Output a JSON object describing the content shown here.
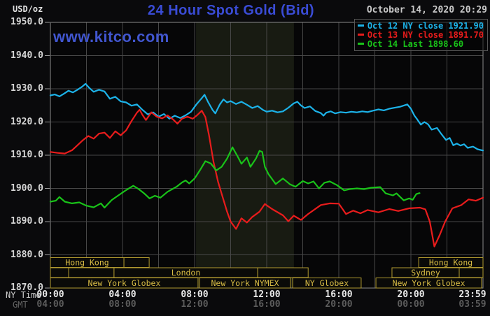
{
  "header": {
    "title": "24 Hour Spot Gold (Bid)",
    "date": "October 14, 2020 20:29",
    "watermark": "www.kitco.com"
  },
  "legend": {
    "items": [
      {
        "label": "Oct 12 NY close 1921.90",
        "color": "#1cb2e8"
      },
      {
        "label": "Oct 13 NY close 1891.70",
        "color": "#e81c1c"
      },
      {
        "label": "Oct 14 Last 1898.60",
        "color": "#19c319"
      }
    ]
  },
  "colors": {
    "outer_bg": "#0a0a0c",
    "plot_bg": "#060607",
    "band": "#181b12",
    "grid": "#474747",
    "border": "#8a8a8a",
    "session_border": "#b09a30",
    "session_text": "#d8bc45",
    "session_fill": "#0a0a08"
  },
  "chart_data": {
    "type": "line",
    "title": "24 Hour Spot Gold (Bid)",
    "y_axis": {
      "label": "USD/oz",
      "min": 1870,
      "max": 1950,
      "tick_step": 10,
      "tick_labels": [
        "1950.0",
        "1940.0",
        "1930.0",
        "1920.0",
        "1910.0",
        "1900.0",
        "1890.0",
        "1880.0",
        "1870.0"
      ]
    },
    "x_axis": {
      "label_ny": "NY Time",
      "label_gmt": "GMT",
      "range_hours": [
        0,
        24
      ],
      "grid_step_hours": 2,
      "ticks": [
        {
          "h": 0,
          "ny": "00:00",
          "gmt": "04:00"
        },
        {
          "h": 4,
          "ny": "04:00",
          "gmt": "08:00"
        },
        {
          "h": 8,
          "ny": "08:00",
          "gmt": "12:00"
        },
        {
          "h": 12,
          "ny": "12:00",
          "gmt": "16:00"
        },
        {
          "h": 16,
          "ny": "16:00",
          "gmt": "20:00"
        },
        {
          "h": 20,
          "ny": "20:00",
          "gmt": "00:00"
        },
        {
          "h": 23.983,
          "ny": "23:59",
          "gmt": "03:59",
          "align": "right"
        }
      ]
    },
    "nymex_highlight_hours": [
      8.08,
      13.51
    ],
    "sessions": [
      {
        "boxes": [
          {
            "label": "Hong Kong",
            "start": 0,
            "end": 4.08
          },
          {
            "label": "",
            "start": 4.08,
            "end": 5.48
          },
          {
            "label": "Hong Kong",
            "start": 20.43,
            "end": 24
          }
        ]
      },
      {
        "boxes": [
          {
            "label": "",
            "start": 0,
            "end": 1.01
          },
          {
            "label": "",
            "start": 1.01,
            "end": 3.53
          },
          {
            "label": "London",
            "start": 3.53,
            "end": 11.5
          },
          {
            "label": "",
            "start": 11.5,
            "end": 14.3
          },
          {
            "label": "Sydney",
            "start": 18.95,
            "end": 22.68
          },
          {
            "label": "",
            "start": 22.68,
            "end": 24
          }
        ]
      },
      {
        "boxes": [
          {
            "label": "New York Globex",
            "start": 0,
            "end": 8.19
          },
          {
            "label": "New York NYMEX",
            "start": 8.27,
            "end": 13.32
          },
          {
            "label": "NY Globex",
            "start": 13.44,
            "end": 17.24
          },
          {
            "label": "New York Globex",
            "start": 18.06,
            "end": 23.92
          }
        ]
      }
    ],
    "series": [
      {
        "name": "Oct 12",
        "close_label": "NY close 1921.90",
        "color": "#1cb2e8",
        "points": [
          [
            0,
            1928
          ],
          [
            0.25,
            1928.3
          ],
          [
            0.5,
            1927.7
          ],
          [
            0.75,
            1928.5
          ],
          [
            1,
            1929.4
          ],
          [
            1.25,
            1928.9
          ],
          [
            1.5,
            1929.7
          ],
          [
            1.75,
            1930.6
          ],
          [
            1.95,
            1931.5
          ],
          [
            2.15,
            1930.3
          ],
          [
            2.4,
            1929.1
          ],
          [
            2.7,
            1929.7
          ],
          [
            3,
            1929.2
          ],
          [
            3.3,
            1927
          ],
          [
            3.6,
            1927.6
          ],
          [
            3.9,
            1926.2
          ],
          [
            4.2,
            1925.9
          ],
          [
            4.5,
            1924.9
          ],
          [
            4.8,
            1925.3
          ],
          [
            5.1,
            1923.7
          ],
          [
            5.4,
            1922.3
          ],
          [
            5.7,
            1922.9
          ],
          [
            6,
            1921.6
          ],
          [
            6.3,
            1922.4
          ],
          [
            6.6,
            1921
          ],
          [
            6.9,
            1921.9
          ],
          [
            7.2,
            1921.2
          ],
          [
            7.5,
            1922
          ],
          [
            7.8,
            1923.1
          ],
          [
            8.1,
            1925.3
          ],
          [
            8.4,
            1927.2
          ],
          [
            8.55,
            1928.2
          ],
          [
            8.75,
            1926
          ],
          [
            9,
            1923.6
          ],
          [
            9.15,
            1922.6
          ],
          [
            9.4,
            1925.3
          ],
          [
            9.6,
            1926.8
          ],
          [
            9.8,
            1925.9
          ],
          [
            10,
            1926.3
          ],
          [
            10.3,
            1925.4
          ],
          [
            10.6,
            1926.1
          ],
          [
            10.9,
            1925.2
          ],
          [
            11.2,
            1924.2
          ],
          [
            11.5,
            1924.8
          ],
          [
            11.8,
            1923.6
          ],
          [
            12,
            1923.1
          ],
          [
            12.3,
            1923.4
          ],
          [
            12.6,
            1922.9
          ],
          [
            12.9,
            1923.2
          ],
          [
            13.2,
            1924.3
          ],
          [
            13.5,
            1925.6
          ],
          [
            13.7,
            1926.1
          ],
          [
            13.9,
            1925
          ],
          [
            14.1,
            1924.2
          ],
          [
            14.4,
            1924.7
          ],
          [
            14.7,
            1923.3
          ],
          [
            15,
            1922.7
          ],
          [
            15.15,
            1921.9
          ],
          [
            15.3,
            1922.8
          ],
          [
            15.55,
            1923.2
          ],
          [
            15.8,
            1922.6
          ],
          [
            16.1,
            1923
          ],
          [
            16.4,
            1922.8
          ],
          [
            16.7,
            1923.1
          ],
          [
            17,
            1922.9
          ],
          [
            17.3,
            1923.2
          ],
          [
            17.6,
            1923
          ],
          [
            17.9,
            1923.4
          ],
          [
            18.2,
            1923.8
          ],
          [
            18.5,
            1923.5
          ],
          [
            18.8,
            1924
          ],
          [
            19.1,
            1924.3
          ],
          [
            19.4,
            1924.6
          ],
          [
            19.8,
            1925.3
          ],
          [
            20,
            1924
          ],
          [
            20.2,
            1921.9
          ],
          [
            20.35,
            1920.8
          ],
          [
            20.55,
            1919.2
          ],
          [
            20.75,
            1920
          ],
          [
            20.95,
            1919.3
          ],
          [
            21.15,
            1917.7
          ],
          [
            21.45,
            1918.2
          ],
          [
            21.7,
            1916.3
          ],
          [
            21.95,
            1914.6
          ],
          [
            22.15,
            1915.2
          ],
          [
            22.35,
            1913
          ],
          [
            22.55,
            1913.5
          ],
          [
            22.75,
            1912.9
          ],
          [
            22.95,
            1913.3
          ],
          [
            23.15,
            1912.2
          ],
          [
            23.45,
            1912.6
          ],
          [
            23.7,
            1911.8
          ],
          [
            24,
            1911.4
          ]
        ]
      },
      {
        "name": "Oct 13",
        "close_label": "NY close 1891.70",
        "color": "#e81c1c",
        "points": [
          [
            0,
            1911
          ],
          [
            0.4,
            1910.7
          ],
          [
            0.8,
            1910.5
          ],
          [
            1.2,
            1911.5
          ],
          [
            1.5,
            1913
          ],
          [
            1.8,
            1914.5
          ],
          [
            2.1,
            1915.8
          ],
          [
            2.4,
            1915
          ],
          [
            2.7,
            1916.5
          ],
          [
            3,
            1916.8
          ],
          [
            3.3,
            1915.2
          ],
          [
            3.6,
            1917.2
          ],
          [
            3.9,
            1916
          ],
          [
            4.2,
            1917.5
          ],
          [
            4.5,
            1920.3
          ],
          [
            4.8,
            1922.8
          ],
          [
            4.95,
            1923.7
          ],
          [
            5.1,
            1922.2
          ],
          [
            5.3,
            1920.6
          ],
          [
            5.6,
            1922.9
          ],
          [
            5.9,
            1921.6
          ],
          [
            6.2,
            1921.1
          ],
          [
            6.5,
            1922
          ],
          [
            6.8,
            1920.8
          ],
          [
            7.05,
            1919.5
          ],
          [
            7.3,
            1921
          ],
          [
            7.6,
            1921.6
          ],
          [
            7.9,
            1921
          ],
          [
            8.15,
            1922.1
          ],
          [
            8.4,
            1923.4
          ],
          [
            8.6,
            1921.5
          ],
          [
            8.8,
            1916
          ],
          [
            9.05,
            1908
          ],
          [
            9.3,
            1902
          ],
          [
            9.5,
            1898.4
          ],
          [
            9.8,
            1893
          ],
          [
            10,
            1890
          ],
          [
            10.3,
            1887.8
          ],
          [
            10.6,
            1891
          ],
          [
            10.9,
            1889.7
          ],
          [
            11.2,
            1891.4
          ],
          [
            11.6,
            1893
          ],
          [
            11.9,
            1895.3
          ],
          [
            12.3,
            1893.8
          ],
          [
            12.9,
            1891.9
          ],
          [
            13.2,
            1890.1
          ],
          [
            13.5,
            1891.8
          ],
          [
            13.9,
            1890.5
          ],
          [
            14.3,
            1892.3
          ],
          [
            15,
            1895
          ],
          [
            15.5,
            1895.5
          ],
          [
            16,
            1895.4
          ],
          [
            16.4,
            1892.3
          ],
          [
            16.8,
            1893.3
          ],
          [
            17.2,
            1892.5
          ],
          [
            17.6,
            1893.5
          ],
          [
            18.2,
            1892.8
          ],
          [
            18.8,
            1893.8
          ],
          [
            19.3,
            1893.2
          ],
          [
            19.9,
            1894
          ],
          [
            20.5,
            1894.2
          ],
          [
            20.8,
            1893.7
          ],
          [
            21.05,
            1890
          ],
          [
            21.3,
            1882.5
          ],
          [
            21.6,
            1886
          ],
          [
            21.9,
            1890
          ],
          [
            22.3,
            1894
          ],
          [
            22.8,
            1895
          ],
          [
            23.2,
            1896.7
          ],
          [
            23.6,
            1896.3
          ],
          [
            24,
            1897.2
          ]
        ]
      },
      {
        "name": "Oct 14",
        "close_label": "Last 1898.60",
        "color": "#19c319",
        "points": [
          [
            0,
            1896
          ],
          [
            0.3,
            1896.3
          ],
          [
            0.5,
            1897.4
          ],
          [
            0.8,
            1896
          ],
          [
            1.2,
            1895.5
          ],
          [
            1.6,
            1895.8
          ],
          [
            2,
            1894.8
          ],
          [
            2.4,
            1894.3
          ],
          [
            2.8,
            1895.5
          ],
          [
            3,
            1894.2
          ],
          [
            3.4,
            1896.5
          ],
          [
            3.8,
            1898
          ],
          [
            4.2,
            1899.5
          ],
          [
            4.6,
            1900.8
          ],
          [
            4.9,
            1899.8
          ],
          [
            5.2,
            1898.5
          ],
          [
            5.5,
            1897
          ],
          [
            5.8,
            1897.8
          ],
          [
            6.1,
            1897.2
          ],
          [
            6.5,
            1899
          ],
          [
            7,
            1900.5
          ],
          [
            7.3,
            1901.8
          ],
          [
            7.5,
            1902.4
          ],
          [
            7.7,
            1901.5
          ],
          [
            8,
            1903
          ],
          [
            8.3,
            1905.5
          ],
          [
            8.6,
            1908.2
          ],
          [
            8.9,
            1907.5
          ],
          [
            9.2,
            1905.4
          ],
          [
            9.5,
            1906.5
          ],
          [
            9.8,
            1909
          ],
          [
            10.1,
            1912.4
          ],
          [
            10.4,
            1909.5
          ],
          [
            10.6,
            1907.4
          ],
          [
            10.9,
            1909.3
          ],
          [
            11.1,
            1906.5
          ],
          [
            11.4,
            1909
          ],
          [
            11.6,
            1911.3
          ],
          [
            11.75,
            1911
          ],
          [
            11.9,
            1906.5
          ],
          [
            12.1,
            1904.3
          ],
          [
            12.5,
            1901.3
          ],
          [
            12.9,
            1903
          ],
          [
            13.3,
            1901.2
          ],
          [
            13.6,
            1900.5
          ],
          [
            14,
            1902.2
          ],
          [
            14.3,
            1901.5
          ],
          [
            14.6,
            1902.1
          ],
          [
            14.9,
            1900
          ],
          [
            15.2,
            1901.7
          ],
          [
            15.5,
            1902.1
          ],
          [
            15.9,
            1901
          ],
          [
            16.3,
            1899.4
          ],
          [
            16.6,
            1899.8
          ],
          [
            17,
            1900
          ],
          [
            17.4,
            1899.8
          ],
          [
            17.8,
            1900.2
          ],
          [
            18.3,
            1900.4
          ],
          [
            18.6,
            1898.5
          ],
          [
            19,
            1897.9
          ],
          [
            19.2,
            1898.5
          ],
          [
            19.6,
            1896.4
          ],
          [
            19.9,
            1897
          ],
          [
            20.1,
            1896.6
          ],
          [
            20.3,
            1898.3
          ],
          [
            20.48,
            1898.6
          ]
        ]
      }
    ]
  }
}
